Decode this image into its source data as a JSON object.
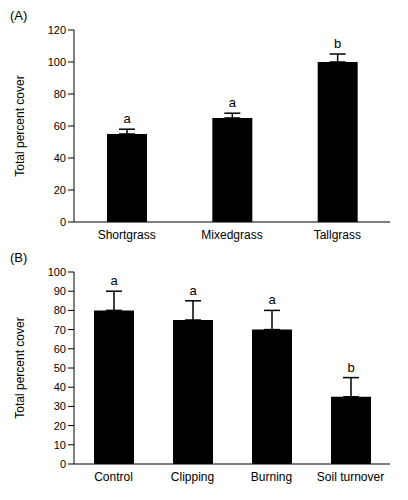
{
  "chart_data": [
    {
      "type": "bar",
      "title": "(A)",
      "y_label": "Total percent cover",
      "categories": [
        "Shortgrass",
        "Mixedgrass",
        "Tallgrass"
      ],
      "values": [
        55,
        65,
        100
      ],
      "errors": [
        3,
        3,
        5
      ],
      "letters": [
        "a",
        "a",
        "b"
      ],
      "color": "#000000",
      "ylim": [
        0,
        120
      ],
      "yticks": [
        0,
        20,
        40,
        60,
        80,
        100,
        120
      ],
      "grid": false
    },
    {
      "type": "bar",
      "title": "(B)",
      "y_label": "Total percent cover",
      "categories": [
        "Control",
        "Clipping",
        "Burning",
        "Soil turnover"
      ],
      "values": [
        80,
        75,
        70,
        35
      ],
      "errors": [
        10,
        10,
        10,
        10
      ],
      "letters": [
        "a",
        "a",
        "a",
        "b"
      ],
      "color": "#000000",
      "ylim": [
        0,
        100
      ],
      "yticks": [
        0,
        10,
        20,
        30,
        40,
        50,
        60,
        70,
        80,
        90,
        100
      ],
      "grid": false
    }
  ]
}
